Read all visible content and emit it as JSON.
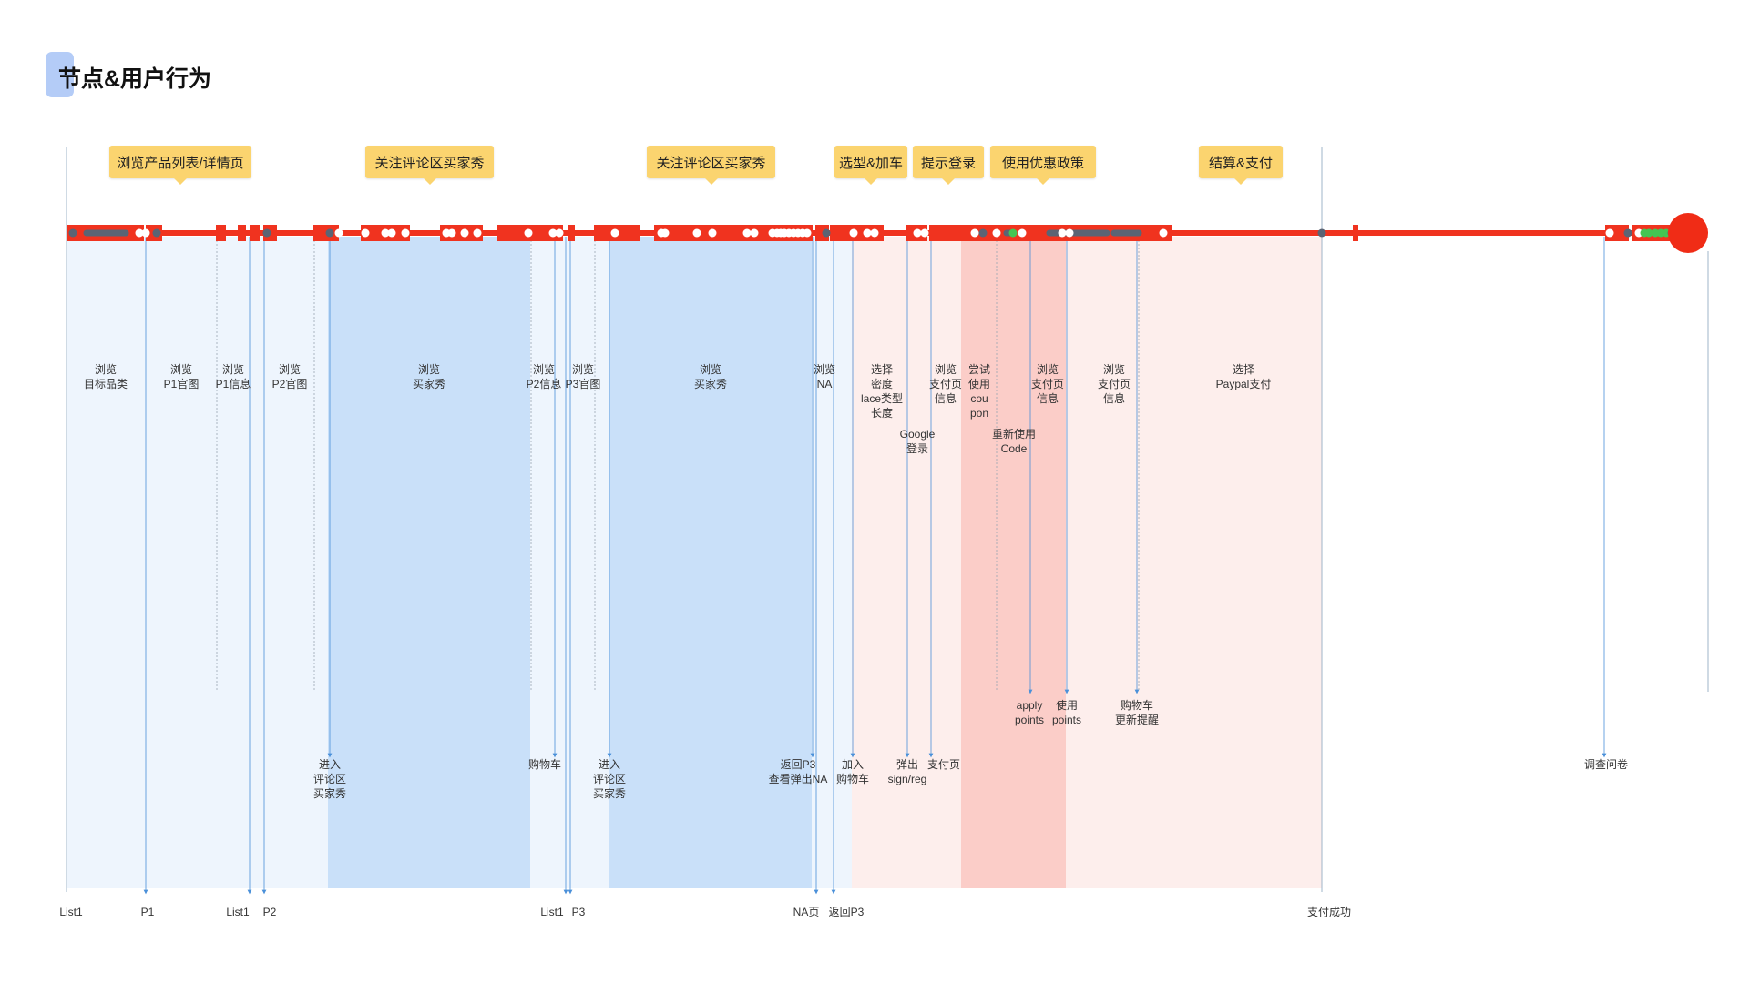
{
  "title": "节点&用户行为",
  "stages": [
    "浏览产品列表/详情页",
    "关注评论区买家秀",
    "关注评论区买家秀",
    "选型&加车",
    "提示登录",
    "使用优惠政策",
    "结算&支付"
  ],
  "behaviors": [
    [
      "浏览",
      "目标品类"
    ],
    [
      "浏览",
      "P1官图"
    ],
    [
      "浏览",
      "P1信息"
    ],
    [
      "浏览",
      "P2官图"
    ],
    [
      "浏览",
      "买家秀"
    ],
    [
      "浏览",
      "P2信息"
    ],
    [
      "浏览",
      "P3官图"
    ],
    [
      "浏览",
      "买家秀"
    ],
    [
      "浏览",
      "NA"
    ],
    [
      "选择",
      "密度",
      "lace类型",
      "长度"
    ],
    [
      "浏览",
      "支付页",
      "信息"
    ],
    [
      "尝试",
      "使用",
      "cou",
      "pon"
    ],
    [
      "浏览",
      "支付页",
      "信息"
    ],
    [
      "浏览",
      "支付页",
      "信息"
    ],
    [
      "选择",
      "Paypal支付"
    ],
    [
      "Google",
      "登录"
    ],
    [
      "重新使用",
      "Code"
    ]
  ],
  "events_mid": [
    [
      "apply",
      "points"
    ],
    [
      "使用",
      "points"
    ],
    [
      "购物车",
      "更新提醒"
    ]
  ],
  "events_low": [
    [
      "进入",
      "评论区",
      "买家秀"
    ],
    [
      "购物车"
    ],
    [
      "进入",
      "评论区",
      "买家秀"
    ],
    [
      "返回P3",
      "查看弹出NA"
    ],
    [
      "加入",
      "购物车"
    ],
    [
      "弹出",
      "sign/reg"
    ],
    [
      "支付页"
    ],
    [
      "调查问卷"
    ]
  ],
  "pages": [
    "List1",
    "P1",
    "List1",
    "P2",
    "List1",
    "P3",
    "NA页",
    "返回P3",
    "支付成功"
  ],
  "colors": {
    "timeline": "#f0331f",
    "end_dot": "#f02c16",
    "dot_light": "#ffffff",
    "dot_dark": "#5b6474",
    "dot_green": "#44c553",
    "stage_tag": "#fbd46f",
    "title_accent": "#b4ccf7",
    "band_light_blue": "#eef5fd",
    "band_blue": "#c9e0f9",
    "band_light_red": "#fdeeec",
    "band_red": "#fbcdc8",
    "guide_line": "#4a90d9"
  }
}
